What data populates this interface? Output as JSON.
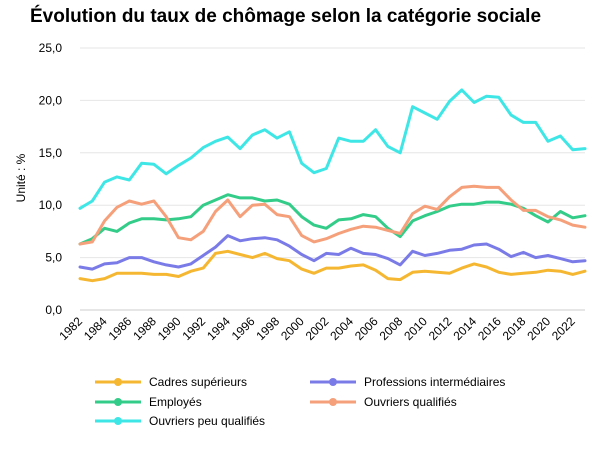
{
  "chart_data": {
    "type": "line",
    "title": "Évolution du taux de chômage selon la catégorie sociale",
    "ylabel": "Unité : %",
    "xlabel": "",
    "ylim": [
      0,
      25
    ],
    "yticks": [
      "0,0",
      "5,0",
      "10,0",
      "15,0",
      "20,0",
      "25,0"
    ],
    "xtick_labels": [
      "1982",
      "1984",
      "1986",
      "1988",
      "1990",
      "1992",
      "1994",
      "1996",
      "1998",
      "2000",
      "2002",
      "2004",
      "2006",
      "2008",
      "2010",
      "2012",
      "2014",
      "2016",
      "2018",
      "2020",
      "2022"
    ],
    "grid": "horizontal",
    "legend_position": "bottom",
    "x": [
      1982,
      1983,
      1984,
      1985,
      1986,
      1987,
      1988,
      1989,
      1990,
      1991,
      1992,
      1993,
      1994,
      1995,
      1996,
      1997,
      1998,
      1999,
      2000,
      2001,
      2002,
      2003,
      2004,
      2005,
      2006,
      2007,
      2008,
      2009,
      2010,
      2011,
      2012,
      2013,
      2014,
      2015,
      2016,
      2017,
      2018,
      2019,
      2020,
      2021,
      2022,
      2023
    ],
    "series": [
      {
        "name": "Cadres supérieurs",
        "color": "#f5b731",
        "values": [
          3.0,
          2.8,
          3.0,
          3.5,
          3.5,
          3.5,
          3.4,
          3.4,
          3.2,
          3.7,
          4.0,
          5.4,
          5.6,
          5.3,
          5.0,
          5.4,
          4.9,
          4.7,
          3.9,
          3.5,
          4.0,
          4.0,
          4.2,
          4.3,
          3.8,
          3.0,
          2.9,
          3.6,
          3.7,
          3.6,
          3.5,
          4.0,
          4.4,
          4.1,
          3.6,
          3.4,
          3.5,
          3.6,
          3.8,
          3.7,
          3.4,
          3.7
        ]
      },
      {
        "name": "Professions intermédiaires",
        "color": "#7b7be8",
        "values": [
          4.1,
          3.9,
          4.4,
          4.5,
          5.0,
          5.0,
          4.6,
          4.3,
          4.1,
          4.4,
          5.2,
          6.0,
          7.1,
          6.6,
          6.8,
          6.9,
          6.7,
          6.1,
          5.3,
          4.7,
          5.4,
          5.3,
          5.9,
          5.4,
          5.3,
          4.9,
          4.3,
          5.6,
          5.2,
          5.4,
          5.7,
          5.8,
          6.2,
          6.3,
          5.8,
          5.1,
          5.5,
          5.0,
          5.2,
          4.9,
          4.6,
          4.7
        ]
      },
      {
        "name": "Employés",
        "color": "#33cc88",
        "values": [
          6.3,
          6.8,
          7.8,
          7.5,
          8.3,
          8.7,
          8.7,
          8.6,
          8.7,
          8.9,
          10.0,
          10.5,
          11.0,
          10.7,
          10.7,
          10.4,
          10.5,
          10.1,
          8.9,
          8.1,
          7.8,
          8.6,
          8.7,
          9.1,
          8.9,
          7.8,
          7.0,
          8.5,
          9.0,
          9.4,
          9.9,
          10.1,
          10.1,
          10.3,
          10.3,
          10.1,
          9.7,
          9.0,
          8.4,
          9.4,
          8.8,
          9.0
        ]
      },
      {
        "name": "Ouvriers qualifiés",
        "color": "#f5a07a",
        "values": [
          6.3,
          6.5,
          8.5,
          9.8,
          10.4,
          10.1,
          10.4,
          8.9,
          6.9,
          6.7,
          7.5,
          9.4,
          10.5,
          8.9,
          10.0,
          10.1,
          9.1,
          8.9,
          7.1,
          6.5,
          6.8,
          7.3,
          7.7,
          8.0,
          7.9,
          7.6,
          7.3,
          9.2,
          9.9,
          9.6,
          10.8,
          11.7,
          11.8,
          11.7,
          11.7,
          10.5,
          9.5,
          9.5,
          8.9,
          8.6,
          8.1,
          7.9
        ]
      },
      {
        "name": "Ouvriers peu qualifiés",
        "color": "#3fe6e6",
        "values": [
          9.7,
          10.4,
          12.2,
          12.7,
          12.4,
          14.0,
          13.9,
          13.0,
          13.8,
          14.5,
          15.5,
          16.1,
          16.5,
          15.4,
          16.7,
          17.2,
          16.4,
          17.0,
          14.0,
          13.1,
          13.5,
          16.4,
          16.1,
          16.1,
          17.2,
          15.6,
          15.0,
          19.4,
          18.8,
          18.2,
          19.9,
          21.0,
          19.8,
          20.4,
          20.3,
          18.6,
          17.9,
          17.9,
          16.1,
          16.6,
          15.3,
          15.4
        ]
      }
    ]
  }
}
